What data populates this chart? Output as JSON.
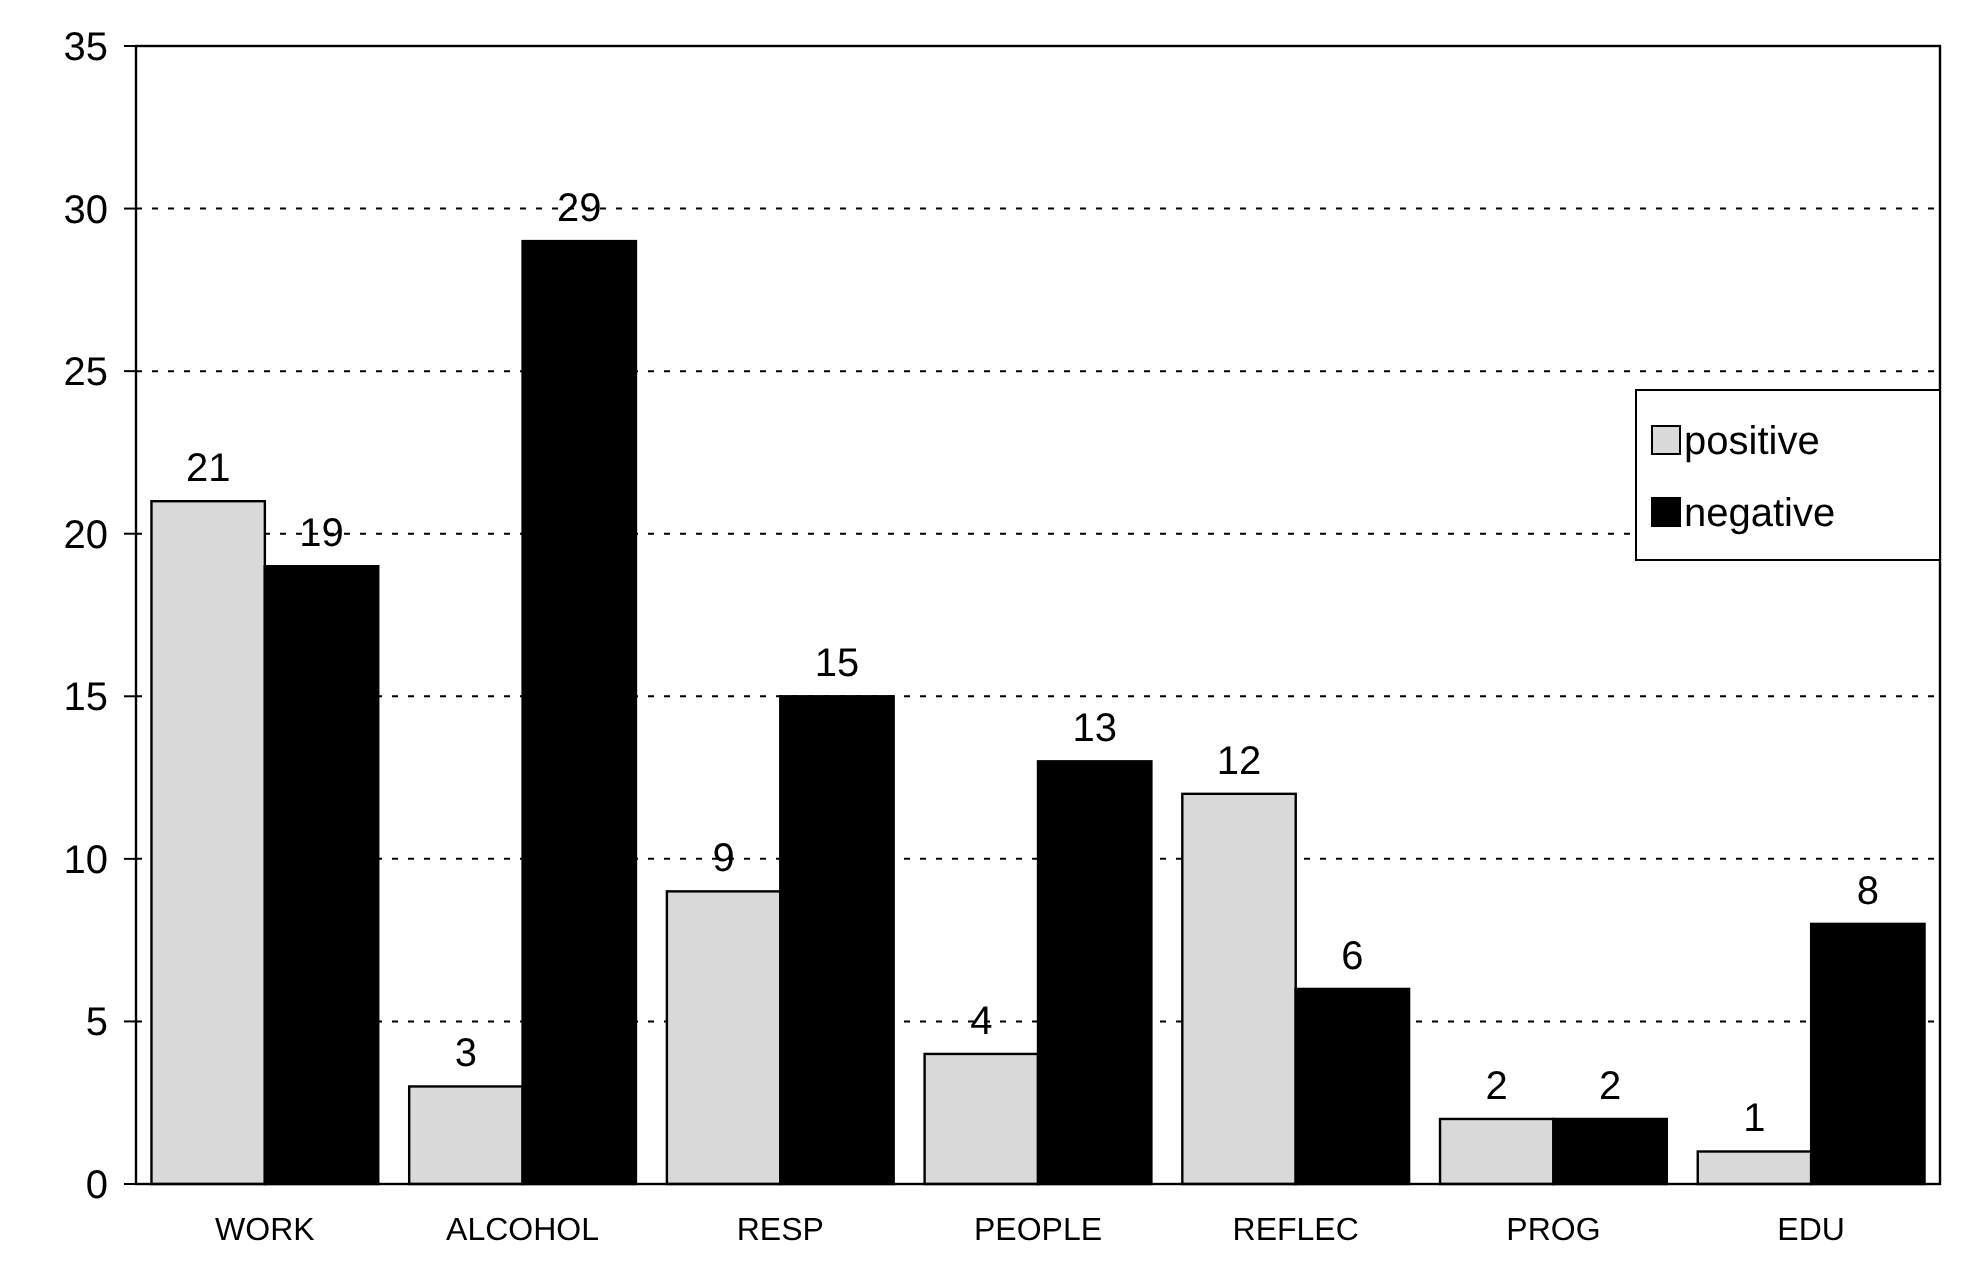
{
  "chart_data": {
    "type": "bar",
    "categories": [
      "WORK",
      "ALCOHOL",
      "RESP",
      "PEOPLE",
      "REFLEC",
      "PROG",
      "EDU"
    ],
    "series": [
      {
        "name": "positive",
        "color": "#d9d9d9",
        "values": [
          21,
          3,
          9,
          4,
          12,
          2,
          1
        ]
      },
      {
        "name": "negative",
        "color": "#000000",
        "values": [
          19,
          29,
          15,
          13,
          6,
          2,
          8
        ]
      }
    ],
    "ylim": [
      0,
      35
    ],
    "yticks": [
      0,
      5,
      10,
      15,
      20,
      25,
      30,
      35
    ],
    "grid": "y",
    "legend": "right",
    "data_labels": true
  }
}
